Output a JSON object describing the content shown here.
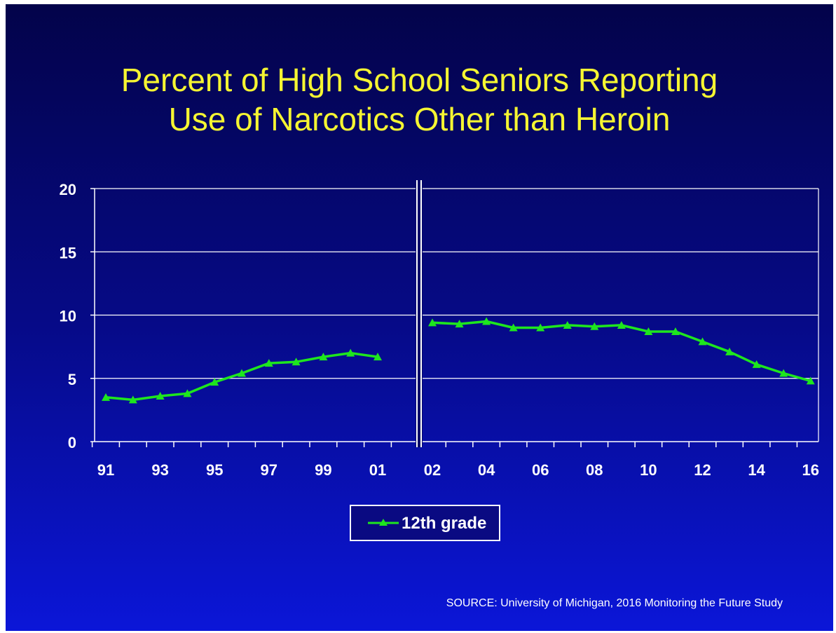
{
  "slide": {
    "title_line1": "Percent of High School Seniors Reporting",
    "title_line2": "Use of Narcotics Other than Heroin",
    "source": "SOURCE: University of Michigan, 2016 Monitoring the Future Study"
  },
  "colors": {
    "title": "#f5f532",
    "line": "#1ee61e",
    "grid": "#ffffff"
  },
  "chart_data": {
    "type": "line",
    "title": "Percent of High School Seniors Reporting Use of Narcotics Other than Heroin",
    "xlabel": "",
    "ylabel": "",
    "ylim": [
      0,
      20
    ],
    "yticks": [
      0,
      5,
      10,
      15,
      20
    ],
    "grid": true,
    "legend": "bottom-center",
    "x_tick_labels": [
      "91",
      "93",
      "95",
      "97",
      "99",
      "01",
      "02",
      "04",
      "06",
      "08",
      "10",
      "12",
      "14",
      "16"
    ],
    "series": [
      {
        "name": "12th grade",
        "segments": [
          {
            "x": [
              "91",
              "92",
              "93",
              "94",
              "95",
              "96",
              "97",
              "98",
              "99",
              "00",
              "01"
            ],
            "y": [
              3.5,
              3.3,
              3.6,
              3.8,
              4.7,
              5.4,
              6.2,
              6.3,
              6.7,
              7.0,
              6.7
            ]
          },
          {
            "x": [
              "02",
              "03",
              "04",
              "05",
              "06",
              "07",
              "08",
              "09",
              "10",
              "11",
              "12",
              "13",
              "14",
              "15",
              "16"
            ],
            "y": [
              9.4,
              9.3,
              9.5,
              9.0,
              9.0,
              9.2,
              9.1,
              9.2,
              8.7,
              8.7,
              7.9,
              7.1,
              6.1,
              5.4,
              4.8
            ]
          }
        ]
      }
    ]
  }
}
